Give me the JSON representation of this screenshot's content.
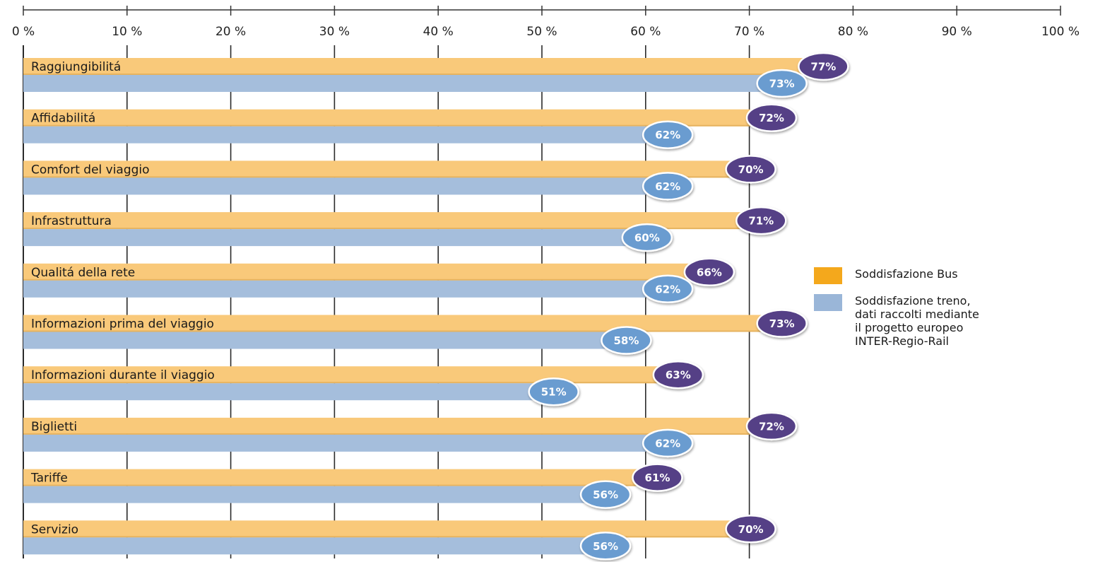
{
  "chart_data": {
    "type": "bar",
    "orientation": "horizontal",
    "xlim": [
      0,
      100
    ],
    "x_ticks": [
      "0 %",
      "10 %",
      "20 %",
      "30 %",
      "40 %",
      "50 %",
      "60 %",
      "70 %",
      "80 %",
      "90 %",
      "100 %"
    ],
    "categories": [
      "Raggiungibilitá",
      "Affidabilitá",
      "Comfort del viaggio",
      "Infrastruttura",
      "Qualitá della rete",
      "Informazioni prima del viaggio",
      "Informazioni durante il viaggio",
      "Biglietti",
      "Tariffe",
      "Servizio"
    ],
    "series": [
      {
        "name": "Soddisfazione Bus",
        "values": [
          77,
          72,
          70,
          71,
          66,
          73,
          63,
          72,
          61,
          70
        ],
        "labels": [
          "77%",
          "72%",
          "70%",
          "71%",
          "66%",
          "73%",
          "63%",
          "72%",
          "61%",
          "70%"
        ],
        "bar_color": "#f9c97a",
        "badge_color": "#553f86",
        "swatch_color": "#f4a81c"
      },
      {
        "name": "Soddisfazione treno,\ndati raccolti mediante\nil progetto europeo\nINTER-Regio-Rail",
        "values": [
          73,
          62,
          62,
          60,
          62,
          58,
          51,
          62,
          56,
          56
        ],
        "labels": [
          "73%",
          "62%",
          "62%",
          "60%",
          "62%",
          "58%",
          "51%",
          "62%",
          "56%",
          "56%"
        ],
        "bar_color": "#a5bedc",
        "badge_color": "#6b9cd0",
        "swatch_color": "#9ab6d8"
      }
    ],
    "grid": true,
    "legend_position": "right"
  }
}
